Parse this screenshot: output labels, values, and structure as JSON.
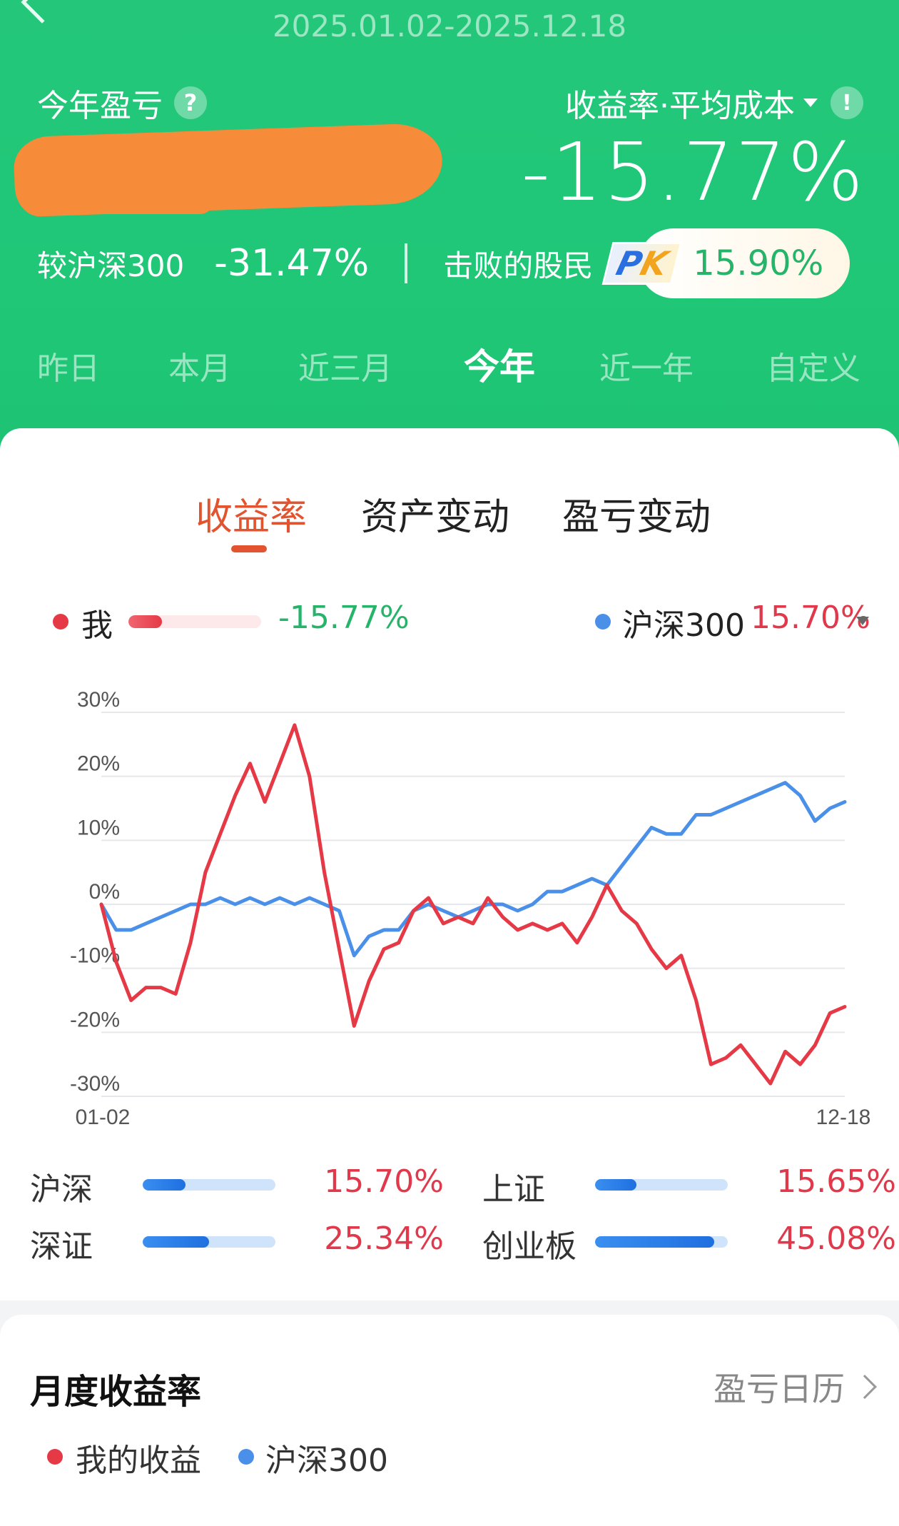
{
  "header": {
    "date_range": "2025.01.02-2025.12.18",
    "pnl_label": "今年盈亏",
    "metric_select": "收益率·平均成本",
    "return_rate": "-15.77%",
    "compare_label": "较沪深300",
    "compare_value": "-31.47%",
    "beat_label": "击败的股民",
    "pk_p": "P",
    "pk_k": "K",
    "beat_value": "15.90%",
    "colors": {
      "header_green": "#1fc777",
      "redaction": "#f68b3a"
    }
  },
  "period_tabs": [
    {
      "label": "昨日",
      "active": false
    },
    {
      "label": "本月",
      "active": false
    },
    {
      "label": "近三月",
      "active": false
    },
    {
      "label": "今年",
      "active": true
    },
    {
      "label": "近一年",
      "active": false
    },
    {
      "label": "自定义",
      "active": false
    }
  ],
  "chart_tabs": [
    {
      "label": "收益率",
      "active": true
    },
    {
      "label": "资产变动",
      "active": false
    },
    {
      "label": "盈亏变动",
      "active": false
    }
  ],
  "legend": {
    "me_label": "我",
    "me_value": "-15.77%",
    "me_bar_level": 0.25,
    "bench_label": "沪深300",
    "bench_value": "15.70%"
  },
  "chart_data": {
    "type": "line",
    "xlabel": "",
    "ylabel": "",
    "x_tick_labels": [
      "01-02",
      "12-18"
    ],
    "y_ticks": [
      "30%",
      "20%",
      "10%",
      "0%",
      "-10%",
      "-20%",
      "-30%"
    ],
    "ylim": [
      -30,
      30
    ],
    "grid": true,
    "legend_placement": "top",
    "series": [
      {
        "name": "我",
        "color": "#e63946",
        "x": [
          0,
          2,
          4,
          6,
          8,
          10,
          12,
          14,
          16,
          18,
          20,
          22,
          24,
          26,
          28,
          30,
          32,
          34,
          36,
          38,
          40,
          42,
          44,
          46,
          48,
          50,
          52,
          54,
          56,
          58,
          60,
          62,
          64,
          66,
          68,
          70,
          72,
          74,
          76,
          78,
          80,
          82,
          84,
          86,
          88,
          90,
          92,
          94,
          96,
          98,
          100
        ],
        "values": [
          0,
          -9,
          -15,
          -13,
          -13,
          -14,
          -6,
          5,
          11,
          17,
          22,
          16,
          22,
          28,
          20,
          5,
          -7,
          -19,
          -12,
          -7,
          -6,
          -1,
          1,
          -3,
          -2,
          -3,
          1,
          -2,
          -4,
          -3,
          -4,
          -3,
          -6,
          -2,
          3,
          -1,
          -3,
          -7,
          -10,
          -8,
          -15,
          -25,
          -24,
          -22,
          -25,
          -28,
          -23,
          -25,
          -22,
          -17,
          -16
        ]
      },
      {
        "name": "沪深300",
        "color": "#4a90e8",
        "x": [
          0,
          2,
          4,
          6,
          8,
          10,
          12,
          14,
          16,
          18,
          20,
          22,
          24,
          26,
          28,
          30,
          32,
          34,
          36,
          38,
          40,
          42,
          44,
          46,
          48,
          50,
          52,
          54,
          56,
          58,
          60,
          62,
          64,
          66,
          68,
          70,
          72,
          74,
          76,
          78,
          80,
          82,
          84,
          86,
          88,
          90,
          92,
          94,
          96,
          98,
          100
        ],
        "values": [
          0,
          -4,
          -4,
          -3,
          -2,
          -1,
          0,
          0,
          1,
          0,
          1,
          0,
          1,
          0,
          1,
          0,
          -1,
          -8,
          -5,
          -4,
          -4,
          -1,
          0,
          -1,
          -2,
          -1,
          0,
          0,
          -1,
          0,
          2,
          2,
          3,
          4,
          3,
          6,
          9,
          12,
          11,
          11,
          14,
          14,
          15,
          16,
          17,
          18,
          19,
          17,
          13,
          15,
          16
        ]
      }
    ]
  },
  "index_bars": [
    {
      "name": "沪深",
      "value": "15.70%",
      "level": 0.32
    },
    {
      "name": "上证",
      "value": "15.65%",
      "level": 0.31
    },
    {
      "name": "深证",
      "value": "25.34%",
      "level": 0.5
    },
    {
      "name": "创业板",
      "value": "45.08%",
      "level": 0.9
    }
  ],
  "monthly": {
    "title": "月度收益率",
    "calendar_link": "盈亏日历",
    "legend_me": "我的收益",
    "legend_bench": "沪深300"
  },
  "colors": {
    "red": "#e63946",
    "blue": "#4a90e8",
    "accent_orange": "#e2542f",
    "green_text": "#26b36a"
  }
}
